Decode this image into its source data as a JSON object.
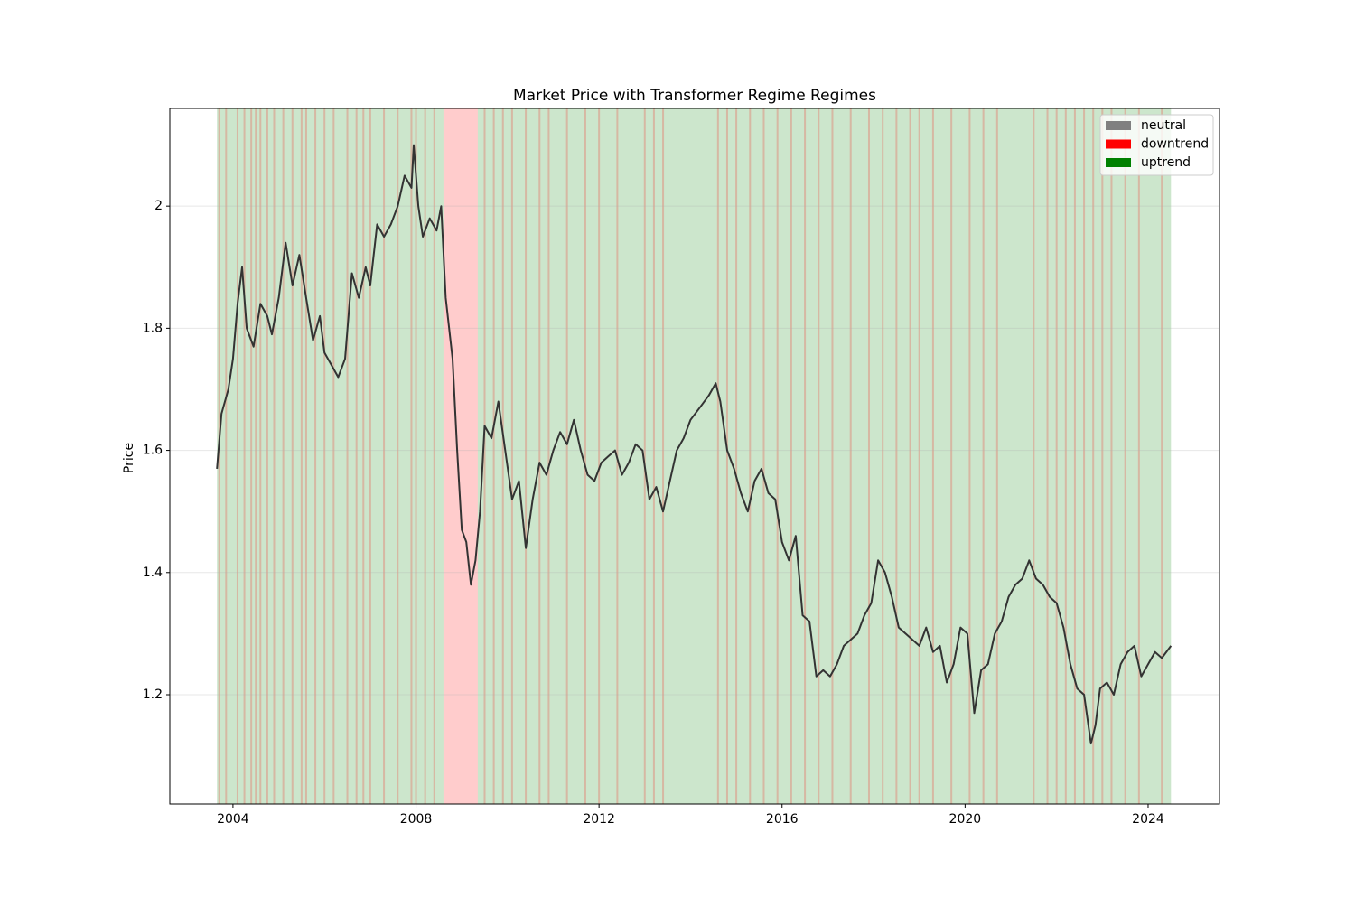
{
  "chart_data": {
    "type": "line",
    "title": "Market Price with Transformer Regime Regimes",
    "y_label": "Price",
    "xlim": [
      2002.62,
      2025.56
    ],
    "xticks": [
      2004,
      2008,
      2012,
      2016,
      2020,
      2024
    ],
    "ylim": [
      1.021,
      2.16
    ],
    "yticks": [
      1.2,
      1.4,
      1.6,
      1.8,
      2.0
    ],
    "grid": true,
    "legend_position": "upper right",
    "regime_legend": [
      {
        "name": "neutral",
        "color": "#808080"
      },
      {
        "name": "downtrend",
        "color": "#ff0000"
      },
      {
        "name": "uptrend",
        "color": "#008000"
      }
    ],
    "regimes": {
      "uptrend": [
        [
          2003.65,
          2008.6
        ],
        [
          2009.35,
          2024.5
        ]
      ],
      "downtrend": [
        [
          2008.6,
          2009.35
        ],
        [
          2003.68,
          2003.72
        ],
        [
          2003.83,
          2003.87
        ],
        [
          2004.08,
          2004.12
        ],
        [
          2004.23,
          2004.27
        ],
        [
          2004.38,
          2004.42
        ],
        [
          2004.48,
          2004.52
        ],
        [
          2004.58,
          2004.62
        ],
        [
          2004.73,
          2004.77
        ],
        [
          2004.88,
          2004.92
        ],
        [
          2005.08,
          2005.12
        ],
        [
          2005.28,
          2005.32
        ],
        [
          2005.48,
          2005.52
        ],
        [
          2005.58,
          2005.62
        ],
        [
          2005.78,
          2005.82
        ],
        [
          2005.98,
          2006.02
        ],
        [
          2006.18,
          2006.22
        ],
        [
          2006.48,
          2006.52
        ],
        [
          2006.68,
          2006.72
        ],
        [
          2006.83,
          2006.87
        ],
        [
          2006.98,
          2007.02
        ],
        [
          2007.28,
          2007.32
        ],
        [
          2007.58,
          2007.62
        ],
        [
          2007.88,
          2007.92
        ],
        [
          2007.98,
          2008.02
        ],
        [
          2008.18,
          2008.22
        ],
        [
          2008.38,
          2008.42
        ],
        [
          2009.48,
          2009.52
        ],
        [
          2009.68,
          2009.72
        ],
        [
          2009.88,
          2009.92
        ],
        [
          2010.08,
          2010.12
        ],
        [
          2010.38,
          2010.42
        ],
        [
          2010.68,
          2010.72
        ],
        [
          2010.88,
          2010.92
        ],
        [
          2011.28,
          2011.32
        ],
        [
          2011.68,
          2011.72
        ],
        [
          2011.98,
          2012.02
        ],
        [
          2012.38,
          2012.42
        ],
        [
          2012.98,
          2013.02
        ],
        [
          2013.18,
          2013.22
        ],
        [
          2013.38,
          2013.42
        ],
        [
          2014.58,
          2014.62
        ],
        [
          2014.78,
          2014.82
        ],
        [
          2014.98,
          2015.02
        ],
        [
          2015.28,
          2015.32
        ],
        [
          2015.58,
          2015.62
        ],
        [
          2015.88,
          2015.92
        ],
        [
          2016.18,
          2016.22
        ],
        [
          2016.48,
          2016.52
        ],
        [
          2016.78,
          2016.82
        ],
        [
          2017.08,
          2017.12
        ],
        [
          2017.48,
          2017.52
        ],
        [
          2017.88,
          2017.92
        ],
        [
          2018.18,
          2018.22
        ],
        [
          2018.48,
          2018.52
        ],
        [
          2018.78,
          2018.82
        ],
        [
          2018.98,
          2019.02
        ],
        [
          2019.28,
          2019.32
        ],
        [
          2019.68,
          2019.72
        ],
        [
          2020.08,
          2020.12
        ],
        [
          2020.38,
          2020.42
        ],
        [
          2020.68,
          2020.72
        ],
        [
          2021.48,
          2021.52
        ],
        [
          2021.78,
          2021.82
        ],
        [
          2021.98,
          2022.02
        ],
        [
          2022.18,
          2022.22
        ],
        [
          2022.38,
          2022.42
        ],
        [
          2022.58,
          2022.62
        ],
        [
          2022.78,
          2022.82
        ],
        [
          2022.98,
          2023.02
        ],
        [
          2023.18,
          2023.22
        ],
        [
          2023.48,
          2023.52
        ],
        [
          2023.78,
          2023.82
        ],
        [
          2024.28,
          2024.32
        ]
      ]
    },
    "series": [
      {
        "color": "#333333",
        "x": [
          2003.65,
          2003.75,
          2003.9,
          2004.0,
          2004.1,
          2004.2,
          2004.3,
          2004.45,
          2004.6,
          2004.75,
          2004.85,
          2005.0,
          2005.15,
          2005.3,
          2005.45,
          2005.6,
          2005.75,
          2005.9,
          2006.0,
          2006.15,
          2006.3,
          2006.45,
          2006.6,
          2006.75,
          2006.9,
          2007.0,
          2007.15,
          2007.3,
          2007.45,
          2007.6,
          2007.75,
          2007.9,
          2007.95,
          2008.05,
          2008.15,
          2008.3,
          2008.45,
          2008.55,
          2008.65,
          2008.8,
          2008.9,
          2009.0,
          2009.1,
          2009.2,
          2009.3,
          2009.4,
          2009.5,
          2009.65,
          2009.8,
          2009.95,
          2010.1,
          2010.25,
          2010.4,
          2010.55,
          2010.7,
          2010.85,
          2011.0,
          2011.15,
          2011.3,
          2011.45,
          2011.6,
          2011.75,
          2011.9,
          2012.05,
          2012.2,
          2012.35,
          2012.5,
          2012.65,
          2012.8,
          2012.95,
          2013.1,
          2013.25,
          2013.4,
          2013.55,
          2013.7,
          2013.85,
          2014.0,
          2014.2,
          2014.4,
          2014.55,
          2014.65,
          2014.8,
          2014.95,
          2015.1,
          2015.25,
          2015.4,
          2015.55,
          2015.7,
          2015.85,
          2016.0,
          2016.15,
          2016.3,
          2016.45,
          2016.6,
          2016.75,
          2016.9,
          2017.05,
          2017.2,
          2017.35,
          2017.5,
          2017.65,
          2017.8,
          2017.95,
          2018.1,
          2018.25,
          2018.4,
          2018.55,
          2018.7,
          2018.85,
          2019.0,
          2019.15,
          2019.3,
          2019.45,
          2019.6,
          2019.75,
          2019.9,
          2020.05,
          2020.2,
          2020.35,
          2020.5,
          2020.65,
          2020.8,
          2020.95,
          2021.1,
          2021.25,
          2021.4,
          2021.55,
          2021.7,
          2021.85,
          2022.0,
          2022.15,
          2022.3,
          2022.45,
          2022.6,
          2022.75,
          2022.85,
          2022.95,
          2023.1,
          2023.25,
          2023.4,
          2023.55,
          2023.7,
          2023.85,
          2024.0,
          2024.15,
          2024.3,
          2024.5
        ],
        "values": [
          1.57,
          1.66,
          1.7,
          1.75,
          1.84,
          1.9,
          1.8,
          1.77,
          1.84,
          1.82,
          1.79,
          1.85,
          1.94,
          1.87,
          1.92,
          1.85,
          1.78,
          1.82,
          1.76,
          1.74,
          1.72,
          1.75,
          1.89,
          1.85,
          1.9,
          1.87,
          1.97,
          1.95,
          1.97,
          2.0,
          2.05,
          2.03,
          2.1,
          2.0,
          1.95,
          1.98,
          1.96,
          2.0,
          1.85,
          1.75,
          1.6,
          1.47,
          1.45,
          1.38,
          1.42,
          1.5,
          1.64,
          1.62,
          1.68,
          1.6,
          1.52,
          1.55,
          1.44,
          1.52,
          1.58,
          1.56,
          1.6,
          1.63,
          1.61,
          1.65,
          1.6,
          1.56,
          1.55,
          1.58,
          1.59,
          1.6,
          1.56,
          1.58,
          1.61,
          1.6,
          1.52,
          1.54,
          1.5,
          1.55,
          1.6,
          1.62,
          1.65,
          1.67,
          1.69,
          1.71,
          1.68,
          1.6,
          1.57,
          1.53,
          1.5,
          1.55,
          1.57,
          1.53,
          1.52,
          1.45,
          1.42,
          1.46,
          1.33,
          1.32,
          1.23,
          1.24,
          1.23,
          1.25,
          1.28,
          1.29,
          1.3,
          1.33,
          1.35,
          1.42,
          1.4,
          1.36,
          1.31,
          1.3,
          1.29,
          1.28,
          1.31,
          1.27,
          1.28,
          1.22,
          1.25,
          1.31,
          1.3,
          1.17,
          1.24,
          1.25,
          1.3,
          1.32,
          1.36,
          1.38,
          1.39,
          1.42,
          1.39,
          1.38,
          1.36,
          1.35,
          1.31,
          1.25,
          1.21,
          1.2,
          1.12,
          1.15,
          1.21,
          1.22,
          1.2,
          1.25,
          1.27,
          1.28,
          1.23,
          1.25,
          1.27,
          1.26,
          1.28
        ]
      }
    ]
  }
}
